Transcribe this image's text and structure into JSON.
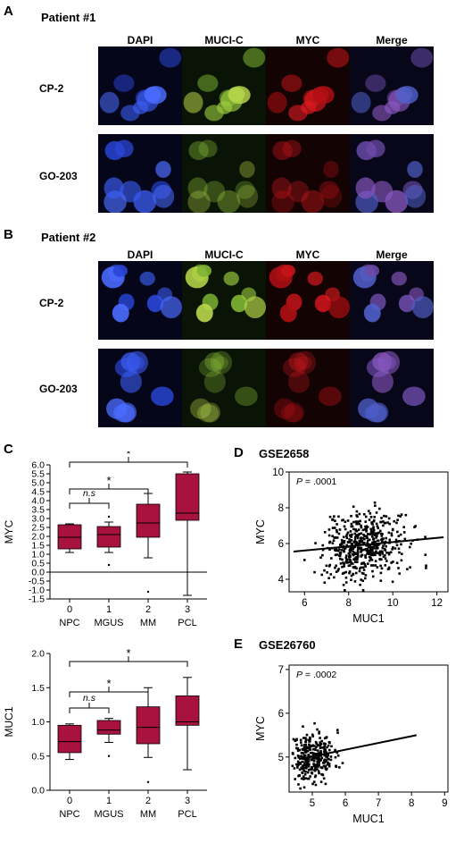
{
  "panel_a": {
    "letter": "A",
    "patient": "Patient #1",
    "columns": [
      "DAPI",
      "MUCI-C",
      "MYC",
      "Merge"
    ],
    "rows": [
      "CP-2",
      "GO-203"
    ]
  },
  "panel_b": {
    "letter": "B",
    "patient": "Patient #2",
    "columns": [
      "DAPI",
      "MUCI-C",
      "MYC",
      "Merge"
    ],
    "rows": [
      "CP-2",
      "GO-203"
    ]
  },
  "panel_c": {
    "letter": "C"
  },
  "panel_d": {
    "letter": "D",
    "dataset": "GSE2658"
  },
  "panel_e": {
    "letter": "E",
    "dataset": "GSE26760"
  },
  "chart_data": [
    {
      "id": "c-top",
      "type": "box",
      "ylabel": "MYC",
      "xlabel": "",
      "ylim": [
        -1.5,
        6.0
      ],
      "yticks": [
        "6.0",
        "5.5",
        "5.0",
        "4.5",
        "4.0",
        "3.5",
        "3.0",
        "2.5",
        "2.0",
        "1.5",
        "1.0",
        "0.5",
        "0.0",
        "-0.5",
        "-1.0",
        "-1.5"
      ],
      "categories": [
        "NPC",
        "MGUS",
        "MM",
        "PCL"
      ],
      "category_codes": [
        "0",
        "1",
        "2",
        "3"
      ],
      "box_color": "#a8123e",
      "boxes": [
        {
          "whisker_low": 1.1,
          "q1": 1.3,
          "median": 1.95,
          "q3": 2.65,
          "whisker_high": 2.7,
          "outliers": []
        },
        {
          "whisker_low": 1.1,
          "q1": 1.4,
          "median": 2.1,
          "q3": 2.55,
          "whisker_high": 2.8,
          "outliers": [
            0.4,
            3.1
          ]
        },
        {
          "whisker_low": 0.8,
          "q1": 1.95,
          "median": 2.75,
          "q3": 3.8,
          "whisker_high": 4.4,
          "outliers": [
            -1.1
          ]
        },
        {
          "whisker_low": -1.3,
          "q1": 2.9,
          "median": 3.3,
          "q3": 5.5,
          "whisker_high": 5.6,
          "outliers": []
        }
      ],
      "brackets": [
        {
          "from": 0,
          "to": 1,
          "label": "n.s"
        },
        {
          "from": 0,
          "to": 2,
          "label": "*"
        },
        {
          "from": 0,
          "to": 3,
          "label": "*"
        }
      ]
    },
    {
      "id": "c-bottom",
      "type": "box",
      "ylabel": "MUC1",
      "xlabel": "",
      "ylim": [
        0.0,
        2.0
      ],
      "yticks": [
        "2.0",
        "1.5",
        "1.0",
        "0.5",
        "0.0"
      ],
      "categories": [
        "NPC",
        "MGUS",
        "MM",
        "PCL"
      ],
      "category_codes": [
        "0",
        "1",
        "2",
        "3"
      ],
      "box_color": "#a8123e",
      "boxes": [
        {
          "whisker_low": 0.45,
          "q1": 0.55,
          "median": 0.71,
          "q3": 0.95,
          "whisker_high": 0.97,
          "outliers": []
        },
        {
          "whisker_low": 0.7,
          "q1": 0.82,
          "median": 0.88,
          "q3": 1.02,
          "whisker_high": 1.05,
          "outliers": [
            0.5
          ]
        },
        {
          "whisker_low": 0.48,
          "q1": 0.68,
          "median": 0.92,
          "q3": 1.22,
          "whisker_high": 1.5,
          "outliers": [
            0.12
          ]
        },
        {
          "whisker_low": 0.3,
          "q1": 0.95,
          "median": 1.0,
          "q3": 1.38,
          "whisker_high": 1.65,
          "outliers": []
        }
      ],
      "brackets": [
        {
          "from": 0,
          "to": 1,
          "label": "n.s"
        },
        {
          "from": 0,
          "to": 2,
          "label": "*"
        },
        {
          "from": 0,
          "to": 3,
          "label": "*"
        }
      ]
    },
    {
      "id": "d",
      "type": "scatter",
      "title": "GSE2658",
      "xlabel": "MUC1",
      "ylabel": "MYC",
      "xlim": [
        5.3,
        12.5
      ],
      "ylim": [
        3.3,
        10.0
      ],
      "xticks": [
        6,
        8,
        10,
        12
      ],
      "yticks": [
        4,
        6,
        8,
        10
      ],
      "annotation": "P = .0001",
      "fit": {
        "x": [
          5.5,
          12.3
        ],
        "y": [
          5.55,
          6.35
        ]
      },
      "cloud": {
        "n": 520,
        "x_mean": 8.7,
        "x_sd": 0.9,
        "y_mean": 5.85,
        "y_sd": 0.95,
        "seed": 7
      }
    },
    {
      "id": "e",
      "type": "scatter",
      "title": "GSE26760",
      "xlabel": "MUC1",
      "ylabel": "MYC",
      "xlim": [
        4.3,
        9.1
      ],
      "ylim": [
        4.2,
        7.1
      ],
      "xticks": [
        5,
        6,
        7,
        8,
        9
      ],
      "yticks": [
        5,
        6,
        7
      ],
      "annotation": "P = .0002",
      "fit": {
        "x": [
          4.6,
          8.15
        ],
        "y": [
          4.95,
          5.5
        ]
      },
      "cloud": {
        "n": 320,
        "x_mean": 5.0,
        "x_sd": 0.33,
        "y_mean": 5.0,
        "y_sd": 0.28,
        "seed": 11
      }
    }
  ]
}
